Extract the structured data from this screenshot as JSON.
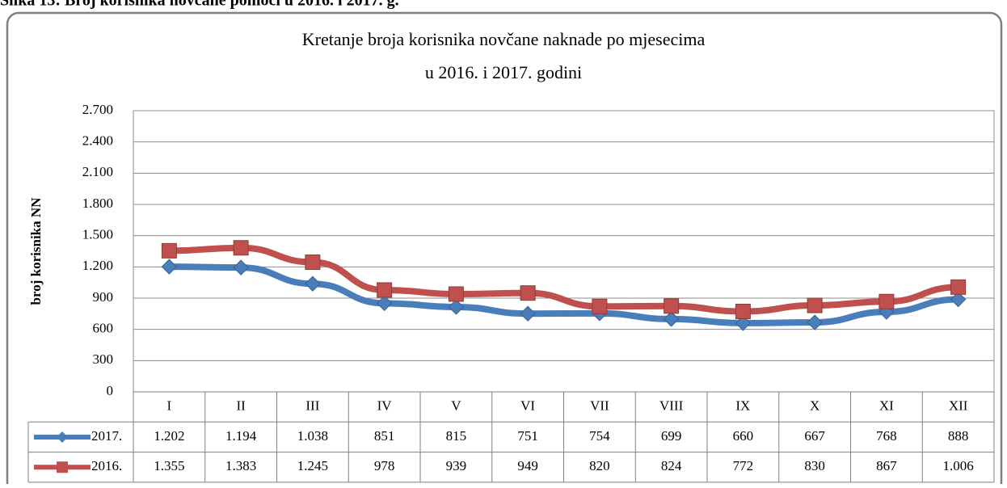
{
  "chart_data": {
    "type": "line",
    "caption": "Slika 13: Broj korisnika novčane pomoći u 2016. i 2017. g.",
    "title": [
      "Kretanje broja korisnika novčane naknade po mjesecima",
      "u 2016. i 2017. godini"
    ],
    "ylabel": "broj korisnika NN",
    "categories": [
      "I",
      "II",
      "III",
      "IV",
      "V",
      "VI",
      "VII",
      "VIII",
      "IX",
      "X",
      "XI",
      "XII"
    ],
    "series": [
      {
        "name": "2017.",
        "color": "#4a7ebb",
        "marker": "diamond",
        "values": [
          1202,
          1194,
          1038,
          851,
          815,
          751,
          754,
          699,
          660,
          667,
          768,
          888
        ],
        "value_labels": [
          "1.202",
          "1.194",
          "1.038",
          "851",
          "815",
          "751",
          "754",
          "699",
          "660",
          "667",
          "768",
          "888"
        ]
      },
      {
        "name": "2016.",
        "color": "#c0504d",
        "marker": "square",
        "values": [
          1355,
          1383,
          1245,
          978,
          939,
          949,
          820,
          824,
          772,
          830,
          867,
          1006
        ],
        "value_labels": [
          "1.355",
          "1.383",
          "1.245",
          "978",
          "939",
          "949",
          "820",
          "824",
          "772",
          "830",
          "867",
          "1.006"
        ]
      }
    ],
    "ylim": [
      0,
      2700
    ],
    "yticks": [
      0,
      300,
      600,
      900,
      {
        "value": 1200,
        "label": "1.200"
      },
      {
        "value": 1500,
        "label": "1.500"
      },
      {
        "value": 1800,
        "label": "1.800"
      },
      {
        "value": 2100,
        "label": "2.100"
      },
      {
        "value": 2400,
        "label": "2.400"
      },
      {
        "value": 2700,
        "label": "2.700"
      }
    ],
    "grid": true
  }
}
